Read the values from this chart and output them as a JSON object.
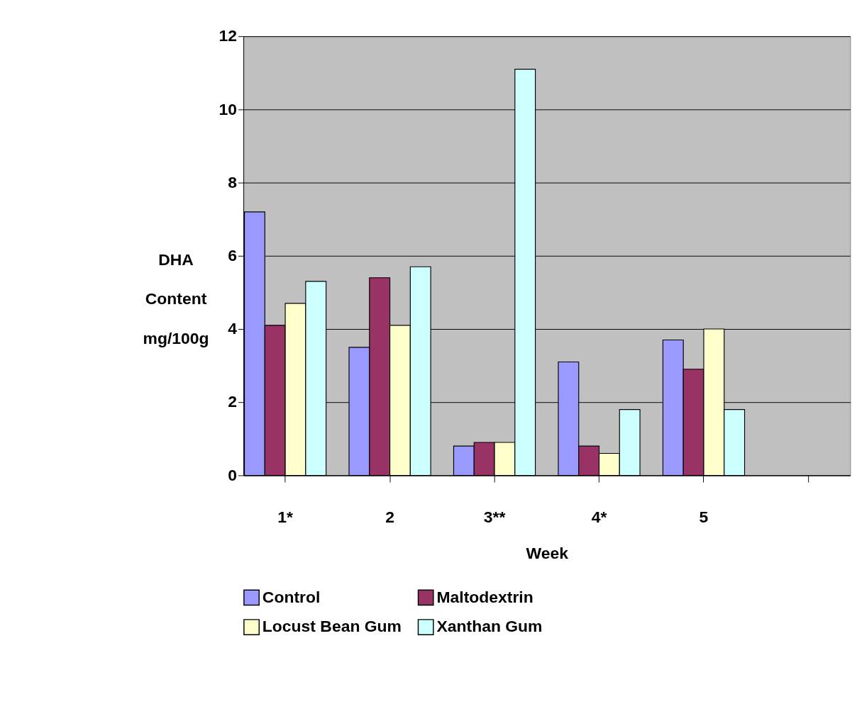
{
  "chart_data": {
    "type": "bar",
    "xlabel": "Week",
    "ylabel": "DHA Content mg/100g",
    "categories": [
      "1*",
      "2",
      "3**",
      "4*",
      "5",
      null
    ],
    "series": [
      {
        "name": "Control",
        "color": "#9999ff",
        "values": [
          7.2,
          3.5,
          0.8,
          3.1,
          3.7,
          null
        ]
      },
      {
        "name": "Maltodextrin",
        "color": "#993366",
        "values": [
          4.1,
          5.4,
          0.9,
          0.8,
          2.9,
          null
        ]
      },
      {
        "name": "Locust Bean Gum",
        "color": "#ffffcc",
        "values": [
          4.7,
          4.1,
          0.9,
          0.6,
          4.0,
          null
        ]
      },
      {
        "name": "Xanthan Gum",
        "color": "#ccffff",
        "values": [
          5.3,
          5.7,
          11.1,
          1.8,
          1.8,
          null
        ]
      }
    ],
    "ylim": [
      0,
      12
    ],
    "yticks": [
      0,
      2,
      4,
      6,
      8,
      10,
      12
    ],
    "grid": "y",
    "legend": "bottom"
  }
}
